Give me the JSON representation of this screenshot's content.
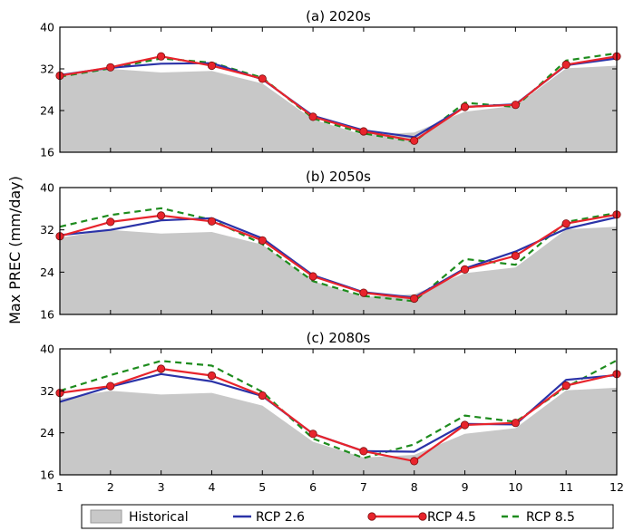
{
  "chart_data": {
    "type": "line",
    "ylabel": "Max PREC (mm/day)",
    "x": [
      1,
      2,
      3,
      4,
      5,
      6,
      7,
      8,
      9,
      10,
      11,
      12
    ],
    "xlim": [
      1,
      12
    ],
    "ylim": [
      16,
      40
    ],
    "yticks": [
      16,
      24,
      32,
      40
    ],
    "legend": [
      {
        "name": "Historical",
        "style": "area",
        "color": "#c8c8c8"
      },
      {
        "name": "RCP 2.6",
        "style": "solid",
        "color": "#2b33a8"
      },
      {
        "name": "RCP 4.5",
        "style": "solid-markers",
        "color": "#e8242c"
      },
      {
        "name": "RCP 8.5",
        "style": "dashed",
        "color": "#1e8c1e"
      }
    ],
    "legend_position": "bottom",
    "panels": [
      {
        "title": "(a) 2020s",
        "series": [
          {
            "name": "Historical",
            "values": [
              30.5,
              32.0,
              31.3,
              31.6,
              29.2,
              22.3,
              19.3,
              19.8,
              23.8,
              24.9,
              32.1,
              32.6
            ]
          },
          {
            "name": "RCP 2.6",
            "values": [
              30.8,
              32.2,
              33.0,
              33.1,
              30.0,
              23.0,
              20.2,
              18.9,
              24.7,
              25.2,
              32.7,
              34.0
            ]
          },
          {
            "name": "RCP 4.5",
            "values": [
              30.7,
              32.3,
              34.4,
              32.6,
              30.1,
              22.8,
              20.0,
              18.2,
              24.7,
              25.1,
              32.8,
              34.4
            ]
          },
          {
            "name": "RCP 8.5",
            "values": [
              30.5,
              32.1,
              34.0,
              33.2,
              30.3,
              22.5,
              19.6,
              18.0,
              25.5,
              24.7,
              33.6,
              35.0
            ]
          }
        ]
      },
      {
        "title": "(b) 2050s",
        "series": [
          {
            "name": "Historical",
            "values": [
              30.5,
              32.0,
              31.3,
              31.6,
              29.2,
              22.3,
              19.3,
              19.8,
              23.8,
              24.9,
              32.1,
              32.6
            ]
          },
          {
            "name": "RCP 2.6",
            "values": [
              31.0,
              32.0,
              33.8,
              34.2,
              30.4,
              23.4,
              20.2,
              19.2,
              24.7,
              27.9,
              32.2,
              34.4
            ]
          },
          {
            "name": "RCP 4.5",
            "values": [
              30.8,
              33.5,
              34.7,
              33.6,
              30.0,
              23.2,
              20.1,
              19.0,
              24.5,
              27.1,
              33.2,
              34.9
            ]
          },
          {
            "name": "RCP 8.5",
            "values": [
              32.6,
              34.8,
              36.1,
              33.9,
              29.3,
              22.3,
              19.5,
              18.5,
              26.5,
              25.4,
              33.5,
              35.2
            ]
          }
        ]
      },
      {
        "title": "(c) 2080s",
        "series": [
          {
            "name": "Historical",
            "values": [
              30.5,
              32.0,
              31.3,
              31.6,
              29.2,
              22.3,
              19.3,
              19.8,
              23.8,
              24.9,
              32.1,
              32.6
            ]
          },
          {
            "name": "RCP 2.6",
            "values": [
              29.9,
              32.8,
              35.2,
              33.8,
              31.0,
              23.8,
              20.5,
              20.4,
              25.7,
              25.6,
              34.1,
              35.0
            ]
          },
          {
            "name": "RCP 4.5",
            "values": [
              31.6,
              32.9,
              36.2,
              34.9,
              31.1,
              23.8,
              20.5,
              18.6,
              25.5,
              25.9,
              33.0,
              35.2
            ]
          },
          {
            "name": "RCP 8.5",
            "values": [
              32.0,
              35.0,
              37.7,
              36.8,
              31.8,
              22.9,
              19.2,
              21.8,
              27.3,
              26.1,
              32.7,
              37.8
            ]
          }
        ]
      }
    ]
  }
}
